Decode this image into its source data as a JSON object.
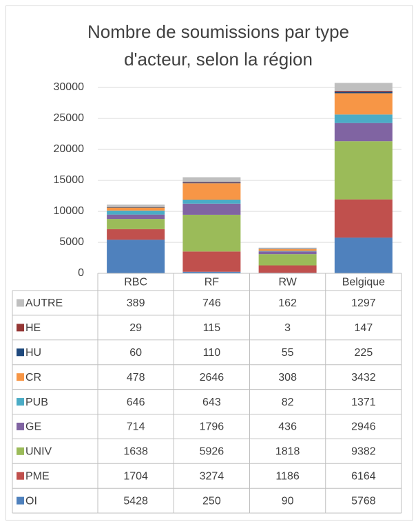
{
  "chart_data": {
    "type": "bar",
    "stacked": true,
    "title": "Nombre de soumissions par type d'acteur, selon la région",
    "categories": [
      "RBC",
      "RF",
      "RW",
      "Belgique"
    ],
    "series": [
      {
        "name": "OI",
        "color": "#4f81bd",
        "values": [
          5428,
          250,
          90,
          5768
        ]
      },
      {
        "name": "PME",
        "color": "#c0504d",
        "values": [
          1704,
          3274,
          1186,
          6164
        ]
      },
      {
        "name": "UNIV",
        "color": "#9bbb59",
        "values": [
          1638,
          5926,
          1818,
          9382
        ]
      },
      {
        "name": "GE",
        "color": "#8064a2",
        "values": [
          714,
          1796,
          436,
          2946
        ]
      },
      {
        "name": "PUB",
        "color": "#4bacc6",
        "values": [
          646,
          643,
          82,
          1371
        ]
      },
      {
        "name": "CR",
        "color": "#f79646",
        "values": [
          478,
          2646,
          308,
          3432
        ]
      },
      {
        "name": "HU",
        "color": "#1f497d",
        "values": [
          60,
          110,
          55,
          225
        ]
      },
      {
        "name": "HE",
        "color": "#953735",
        "values": [
          29,
          115,
          3,
          147
        ]
      },
      {
        "name": "AUTRE",
        "color": "#bfbfbf",
        "values": [
          389,
          746,
          162,
          1297
        ]
      }
    ],
    "ylim": [
      0,
      30000
    ],
    "yticks": [
      0,
      5000,
      10000,
      15000,
      20000,
      25000,
      30000
    ],
    "grid": true
  }
}
